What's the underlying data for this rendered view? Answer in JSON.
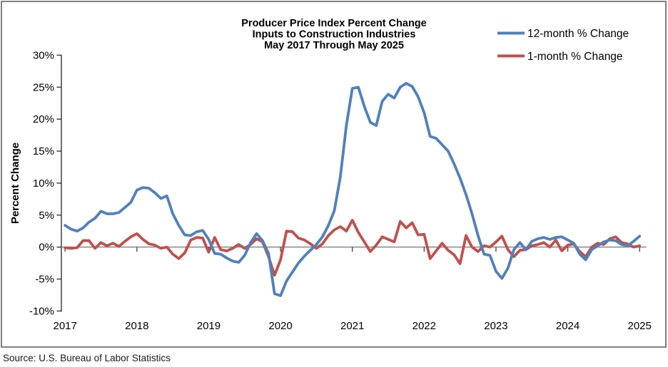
{
  "frame": {
    "source_text": "Source: U.S. Bureau of Labor Statistics"
  },
  "chart_data": {
    "type": "line",
    "title_lines": [
      "Producer Price Index Percent Change",
      "Inputs to Construction Industries",
      "May 2017 Through May 2025"
    ],
    "ylabel": "Percent Change",
    "ylim": [
      -10,
      30
    ],
    "y_tick_values": [
      30,
      25,
      20,
      15,
      10,
      5,
      0,
      -5,
      -10
    ],
    "y_tick_labels": [
      "30%",
      "25%",
      "20%",
      "15%",
      "10%",
      "5%",
      "0%",
      "-5%",
      "-10%"
    ],
    "x_tick_labels": [
      "2017",
      "2018",
      "2019",
      "2020",
      "2021",
      "2022",
      "2023",
      "2024",
      "2025"
    ],
    "x_range": {
      "start": "2017-05",
      "end": "2025-05",
      "freq": "monthly",
      "points": 97,
      "tick_interval_months": 12
    },
    "grid": false,
    "legend_position": "top-right",
    "zero_line_color": "#808080",
    "axis_color": "#404040",
    "series": [
      {
        "name": "12-month % Change",
        "color": "#4F81BD",
        "values": [
          3.4,
          2.8,
          2.5,
          3.0,
          3.9,
          4.5,
          5.6,
          5.2,
          5.2,
          5.4,
          6.2,
          7.0,
          8.9,
          9.3,
          9.2,
          8.5,
          7.6,
          8.0,
          5.2,
          3.4,
          1.9,
          1.8,
          2.4,
          2.6,
          1.2,
          -1.0,
          -1.1,
          -1.7,
          -2.2,
          -2.4,
          -1.3,
          0.7,
          2.1,
          1.0,
          -1.0,
          -7.3,
          -7.6,
          -5.3,
          -3.9,
          -2.5,
          -1.4,
          -0.5,
          0.4,
          1.6,
          3.4,
          5.7,
          11.0,
          19.0,
          24.8,
          25.0,
          22.0,
          19.5,
          19.0,
          22.8,
          23.9,
          23.3,
          25.0,
          25.6,
          25.1,
          23.5,
          21.0,
          17.3,
          17.0,
          16.0,
          15.0,
          13.0,
          10.8,
          8.2,
          5.2,
          1.8,
          -1.1,
          -1.3,
          -3.8,
          -4.9,
          -3.3,
          -0.4,
          0.7,
          -0.4,
          0.9,
          1.3,
          1.5,
          1.2,
          1.5,
          1.6,
          1.1,
          0.6,
          -1.1,
          -2.0,
          -0.4,
          0.2,
          0.8,
          1.1,
          1.0,
          0.4,
          0.2,
          0.9,
          1.7
        ]
      },
      {
        "name": "1-month % Change",
        "color": "#C0504D",
        "values": [
          -0.1,
          -0.2,
          -0.1,
          1.0,
          1.0,
          -0.2,
          0.7,
          0.2,
          0.6,
          0.1,
          0.9,
          1.6,
          2.1,
          1.2,
          0.5,
          0.3,
          -0.2,
          0.0,
          -1.1,
          -1.8,
          -0.9,
          1.1,
          1.5,
          1.4,
          -0.8,
          1.5,
          -0.4,
          -0.6,
          -0.2,
          0.4,
          -0.2,
          0.4,
          1.3,
          0.8,
          -1.5,
          -4.4,
          -2.0,
          2.5,
          2.4,
          1.4,
          1.1,
          0.5,
          -0.2,
          0.5,
          1.8,
          2.7,
          3.2,
          2.5,
          4.2,
          2.3,
          0.8,
          -0.7,
          0.3,
          1.6,
          1.2,
          0.8,
          4.0,
          3.0,
          3.8,
          1.9,
          2.0,
          -1.8,
          -0.6,
          0.6,
          -0.5,
          -1.2,
          -2.6,
          1.8,
          0.0,
          -0.7,
          0.2,
          0.0,
          0.8,
          1.7,
          -0.4,
          -1.5,
          -0.5,
          -0.4,
          0.2,
          0.4,
          0.7,
          0.0,
          1.1,
          -0.6,
          0.3,
          0.5,
          -0.7,
          -1.5,
          0.0,
          0.6,
          0.4,
          1.3,
          1.6,
          0.7,
          0.5,
          0.0,
          0.2
        ]
      }
    ]
  }
}
